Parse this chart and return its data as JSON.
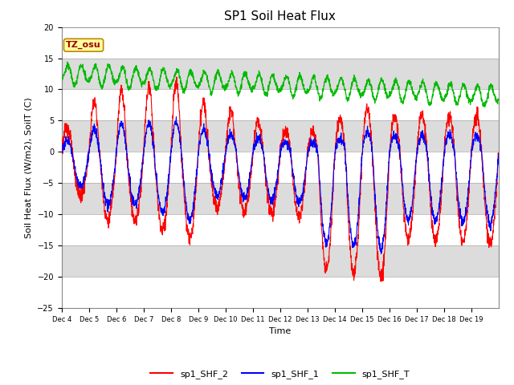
{
  "title": "SP1 Soil Heat Flux",
  "xlabel": "Time",
  "ylabel": "Soil Heat Flux (W/m2), SoilT (C)",
  "ylim": [
    -25,
    20
  ],
  "yticks": [
    -25,
    -20,
    -15,
    -10,
    -5,
    0,
    5,
    10,
    15,
    20
  ],
  "xtick_labels": [
    "Dec 4",
    "Dec 5",
    "Dec 6",
    "Dec 7",
    "Dec 8",
    "Dec 9",
    "Dec 10",
    "Dec 11",
    "Dec 12",
    "Dec 13",
    "Dec 14",
    "Dec 15",
    "Dec 16",
    "Dec 17",
    "Dec 18",
    "Dec 19"
  ],
  "n_days": 16,
  "line_colors": {
    "sp1_SHF_2": "#FF0000",
    "sp1_SHF_1": "#0000FF",
    "sp1_SHF_T": "#00BB00"
  },
  "legend_labels": [
    "sp1_SHF_2",
    "sp1_SHF_1",
    "sp1_SHF_T"
  ],
  "tz_label": "TZ_osu",
  "background_color": "#FFFFFF",
  "band_colors": [
    "#FFFFFF",
    "#DCDCDC"
  ],
  "title_fontsize": 11,
  "axis_label_fontsize": 8,
  "tick_fontsize": 7,
  "legend_fontsize": 8
}
